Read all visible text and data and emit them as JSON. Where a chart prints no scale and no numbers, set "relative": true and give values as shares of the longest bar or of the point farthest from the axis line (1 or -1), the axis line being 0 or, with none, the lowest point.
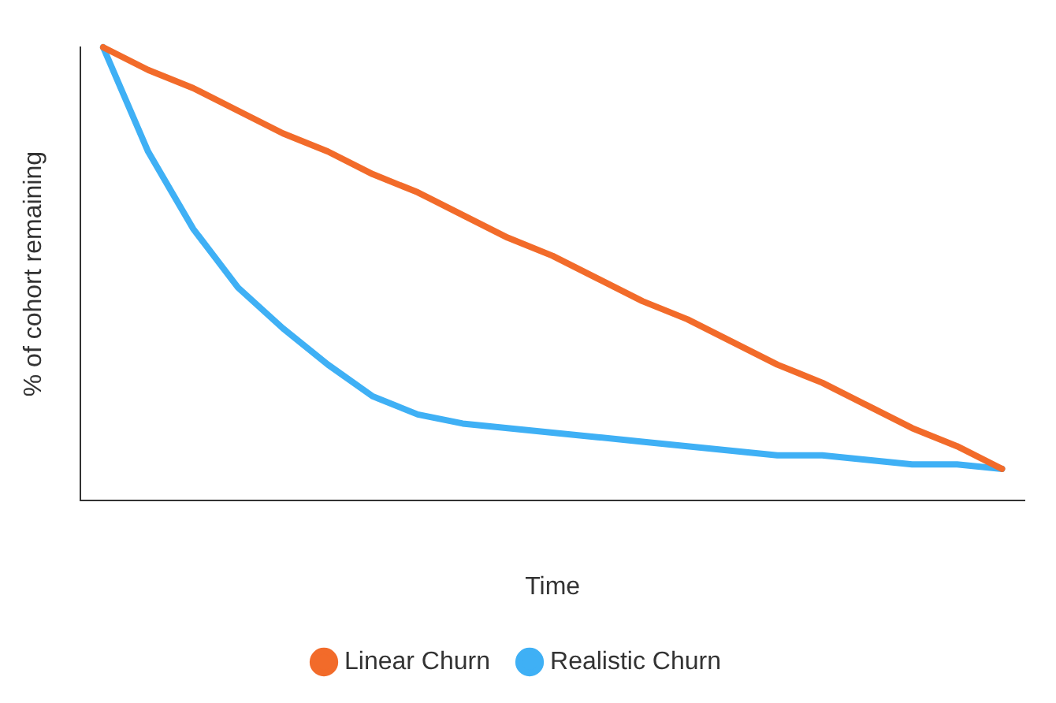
{
  "chart_data": {
    "type": "line",
    "relative": true,
    "xlabel": "Time",
    "ylabel": "% of cohort remaining",
    "categories": [
      null,
      null,
      null,
      null,
      null,
      null,
      null,
      null,
      null,
      null,
      null,
      null,
      null,
      null,
      null,
      null,
      null,
      null,
      null,
      null,
      null
    ],
    "series": [
      {
        "name": "Linear Churn",
        "color": "#f26b2a",
        "values": [
          1,
          0.95,
          0.91,
          0.86,
          0.81,
          0.77,
          0.72,
          0.68,
          0.63,
          0.58,
          0.54,
          0.49,
          0.44,
          0.4,
          0.35,
          0.3,
          0.26,
          0.21,
          0.16,
          0.12,
          0.07
        ]
      },
      {
        "name": "Realistic Churn",
        "color": "#3fb0f5",
        "values": [
          1,
          0.77,
          0.6,
          0.47,
          0.38,
          0.3,
          0.23,
          0.19,
          0.17,
          0.16,
          0.15,
          0.14,
          0.13,
          0.12,
          0.11,
          0.1,
          0.1,
          0.09,
          0.08,
          0.08,
          0.07
        ]
      }
    ],
    "legend": "bottom",
    "grid": false,
    "marker": "none",
    "line_style": "solid"
  }
}
